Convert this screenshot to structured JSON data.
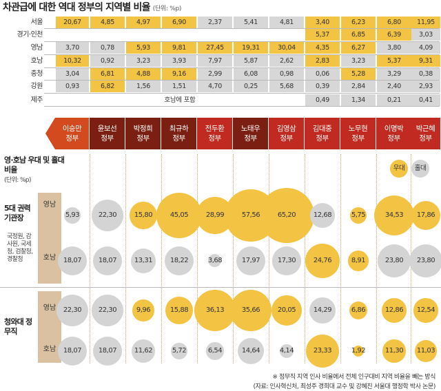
{
  "title": "차관급에 대한 역대 정부의 지역별 비율",
  "title_unit": "(단위: %p)",
  "governments": [
    "이승만 정부",
    "윤보선 정부",
    "박정희 정부",
    "최규하 정부",
    "전두환 정부",
    "노태우 정부",
    "김영삼 정부",
    "김대중 정부",
    "노무현 정부",
    "이명박 정부",
    "박근혜 정부"
  ],
  "gov_colors": [
    "#d24a1d",
    "#7a1f12",
    "#7a1f12",
    "#7a1f12",
    "#c02a20",
    "#7a1f12",
    "#c02a20",
    "#c02a20",
    "#c02a20",
    "#c02a20",
    "#c02a20"
  ],
  "top_table": {
    "rows": [
      {
        "label": "서울",
        "values": [
          "20,67",
          "4,85",
          "4,97",
          "6,90",
          "2,37",
          "5,41",
          "4,81",
          "3,40",
          "6,23",
          "6,80",
          "11,95"
        ]
      },
      {
        "label": "경기·인천",
        "values": [
          "",
          "",
          "",
          "",
          "",
          "",
          "",
          "5,37",
          "6,85",
          "6,39",
          "3,03"
        ]
      },
      {
        "label": "영남",
        "values": [
          "3,70",
          "0,78",
          "5,93",
          "9,81",
          "27,45",
          "19,31",
          "30,04",
          "4,35",
          "6,27",
          "3,80",
          "4,09"
        ]
      },
      {
        "label": "호남",
        "values": [
          "10,32",
          "0,92",
          "3,23",
          "3,93",
          "7,97",
          "5,87",
          "2,62",
          "2,83",
          "3,23",
          "5,37",
          "9,31"
        ]
      },
      {
        "label": "충청",
        "values": [
          "3,04",
          "6,81",
          "4,88",
          "9,16",
          "2,99",
          "6,08",
          "0,98",
          "0,06",
          "5,28",
          "3,29",
          "0,38"
        ]
      },
      {
        "label": "강원",
        "values": [
          "0,93",
          "6,82",
          "1,56",
          "1,51",
          "4,70",
          "0,25",
          "5,68",
          "0,39",
          "2,84",
          "2,40",
          "2,93"
        ]
      },
      {
        "label": "제주",
        "values": [
          "",
          "",
          "",
          "",
          "",
          "",
          "",
          "0,49",
          "1,34",
          "0,21",
          "0,41"
        ]
      }
    ],
    "jeju_note": "호남에 포함",
    "colors": {
      "favored": "#f3c343",
      "disfavored": "#d7d7d7"
    }
  },
  "chart_data": {
    "type": "bubble",
    "title": "영·호남 우대 및 홀대 비율",
    "unit": "(단위: %p)",
    "legend": [
      "우대",
      "홀대"
    ],
    "categories": [
      "이승만 정부",
      "윤보선 정부",
      "박정희 정부",
      "최규하 정부",
      "전두환 정부",
      "노태우 정부",
      "김영삼 정부",
      "김대중 정부",
      "노무현 정부",
      "이명박 정부",
      "박근혜 정부"
    ],
    "groups": [
      {
        "name": "5대 권력 기관장",
        "note": "국정원, 감사원, 국세청, 검찰청, 경찰청",
        "series": [
          {
            "name": "영남",
            "values": [
              5.93,
              22.3,
              15.8,
              45.05,
              28.99,
              57.56,
              65.2,
              12.68,
              5.75,
              34.53,
              17.86
            ],
            "labels": [
              "5,93",
              "22,30",
              "15,80",
              "45,05",
              "28,99",
              "57,56",
              "65,20",
              "12,68",
              "5,75",
              "34,53",
              "17,86"
            ],
            "favored": [
              false,
              false,
              true,
              true,
              true,
              true,
              true,
              false,
              true,
              true,
              true
            ]
          },
          {
            "name": "호남",
            "values": [
              18.07,
              18.07,
              13.31,
              18.22,
              3.68,
              17.97,
              17.3,
              24.76,
              8.91,
              23.8,
              23.8
            ],
            "labels": [
              "18,07",
              "18,07",
              "13,31",
              "18,22",
              "3,68",
              "17,97",
              "17,30",
              "24,76",
              "8,91",
              "23,80",
              "23,80"
            ],
            "favored": [
              false,
              false,
              false,
              false,
              false,
              false,
              false,
              true,
              true,
              false,
              false
            ]
          }
        ]
      },
      {
        "name": "청와대 정무직",
        "note": "",
        "series": [
          {
            "name": "영남",
            "values": [
              22.3,
              22.3,
              9.96,
              15.88,
              36.13,
              35.66,
              20.05,
              14.29,
              6.86,
              12.86,
              12.54
            ],
            "labels": [
              "22,30",
              "22,30",
              "9,96",
              "15,88",
              "36,13",
              "35,66",
              "20,05",
              "14,29",
              "6,86",
              "12,86",
              "12,54"
            ],
            "favored": [
              false,
              false,
              true,
              true,
              true,
              true,
              true,
              false,
              true,
              true,
              true
            ]
          },
          {
            "name": "호남",
            "values": [
              18.07,
              18.07,
              11.62,
              5.72,
              6.54,
              14.64,
              4.14,
              23.33,
              1.92,
              11.3,
              11.03
            ],
            "labels": [
              "18,07",
              "18,07",
              "11,62",
              "5,72",
              "6,54",
              "14,64",
              "4,14",
              "23,33",
              "1,92",
              "11,30",
              "11,03"
            ],
            "favored": [
              false,
              false,
              false,
              false,
              false,
              false,
              false,
              true,
              true,
              true,
              true
            ]
          }
        ]
      }
    ],
    "colors": {
      "favored": "#f3c343",
      "disfavored": "#d4d4d4"
    }
  },
  "footnotes": [
    "※ 정무직 지역 인사 비율에서 전체 인구대비 지역 비율을 빼는 방식",
    "(자료: 인사혁신처, 최성주 경희대 교수 및 강혜진 서울대 행정학 박사 논문)"
  ]
}
